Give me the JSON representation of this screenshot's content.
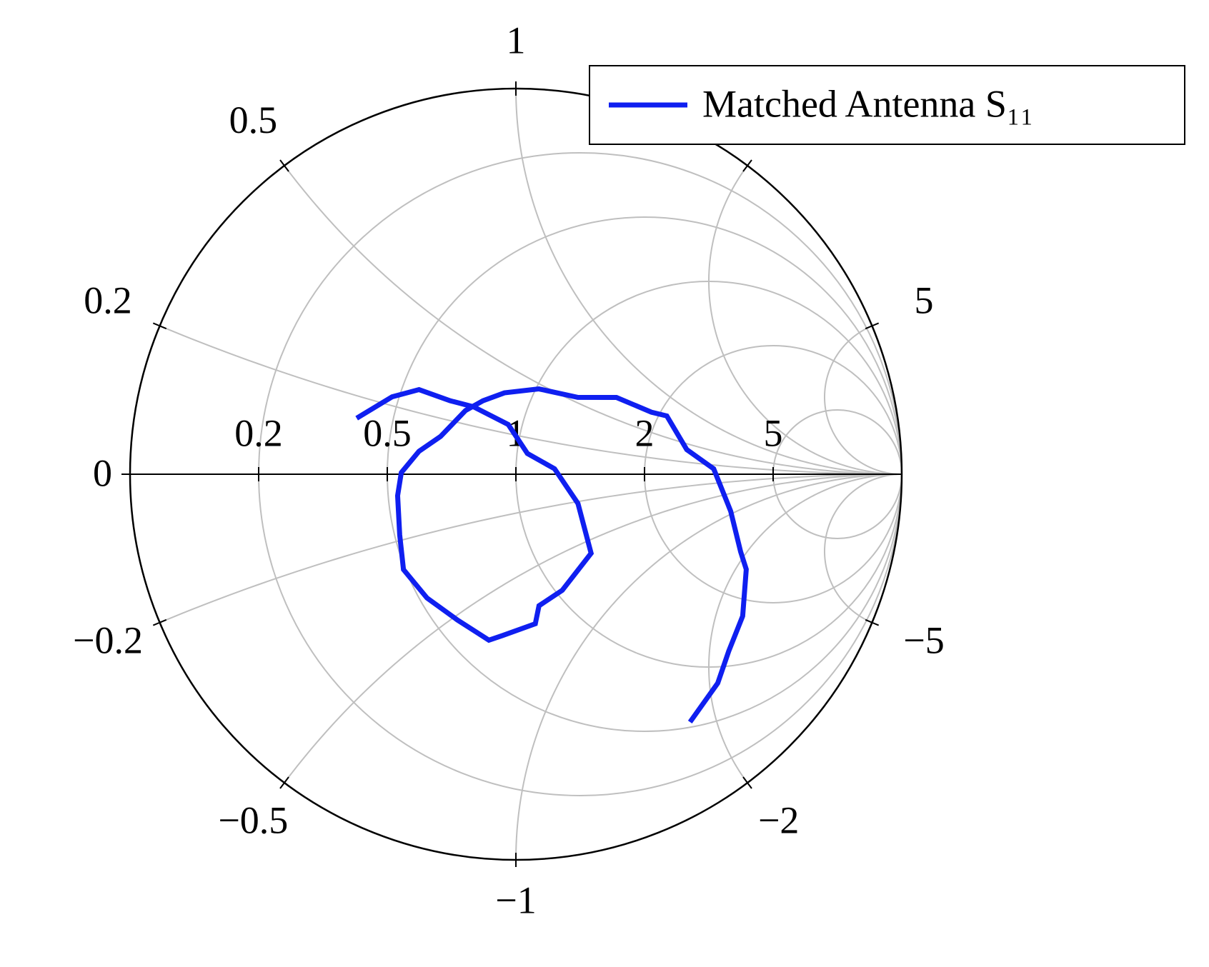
{
  "chart_data": {
    "type": "smith",
    "rticks": [
      0,
      0.2,
      0.5,
      1,
      2,
      5
    ],
    "xticks": [
      0.2,
      0.5,
      1,
      2,
      5,
      {
        "value": -0.2,
        "label": "−0.2"
      },
      {
        "value": -0.5,
        "label": "−0.5"
      },
      {
        "value": -1,
        "label": "−1"
      },
      {
        "value": -2,
        "label": "−2"
      },
      {
        "value": -5,
        "label": "−5"
      }
    ],
    "grid": true,
    "legend": "top-right",
    "series": [
      {
        "name": "Matched Antenna S₁₁",
        "color": "#0f1ff0",
        "resistance": [
          0.401,
          0.48,
          0.551,
          0.665,
          0.758,
          0.93,
          1.055,
          1.222,
          1.364,
          1.333,
          1.035,
          0.88,
          0.805,
          0.662,
          0.609,
          0.568,
          0.522,
          0.494,
          0.515,
          0.528,
          0.542,
          0.595,
          0.662,
          0.732,
          0.788,
          0.864,
          1.015,
          1.255,
          1.522,
          1.904,
          2.094,
          2.543,
          3.1,
          3.31,
          2.89,
          2.61,
          1.7,
          1.18,
          0.831,
          0.537
        ],
        "reactance": [
          0.144,
          0.225,
          0.272,
          0.271,
          0.277,
          0.244,
          0.114,
          0.035,
          -0.214,
          -0.594,
          -0.696,
          -0.682,
          -0.737,
          -0.672,
          -0.647,
          -0.515,
          -0.397,
          -0.286,
          -0.183,
          -0.065,
          0.005,
          0.076,
          0.136,
          0.253,
          0.314,
          0.382,
          0.474,
          0.535,
          0.679,
          0.72,
          0.768,
          0.406,
          0.118,
          -0.932,
          -1.87,
          -2.21,
          -2.41,
          -2.23,
          -2.08,
          -1.8
        ]
      }
    ]
  }
}
